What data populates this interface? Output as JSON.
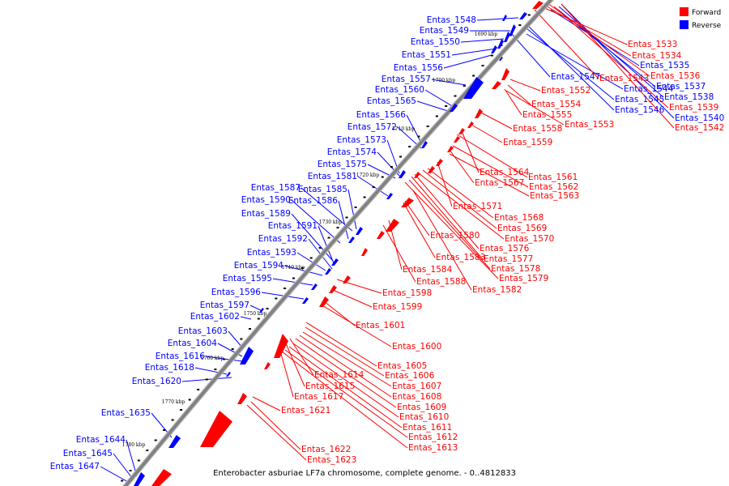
{
  "caption": "Enterobacter asburiae LF7a chromosome, complete genome. - 0..4812833",
  "legend": [
    {
      "label": "Forward",
      "color": "#ff0000"
    },
    {
      "label": "Reverse",
      "color": "#0000ff"
    }
  ],
  "colors": {
    "forward": "#ff0000",
    "reverse": "#0000ff",
    "backbone": "#808080"
  },
  "ticks": [
    "1690 kbp",
    "1700 kbp",
    "1710 kbp",
    "1720 kbp",
    "1730 kbp",
    "1740 kbp",
    "1750 kbp",
    "1760 kbp",
    "1770 kbp",
    "1780 kbp"
  ],
  "reverse_labels": [
    "Entas_1548",
    "Entas_1549",
    "Entas_1550",
    "Entas_1551",
    "Entas_1556",
    "Entas_1557",
    "Entas_1560",
    "Entas_1565",
    "Entas_1566",
    "Entas_1572",
    "Entas_1573",
    "Entas_1574",
    "Entas_1575",
    "Entas_1581",
    "Entas_1587",
    "Entas_1585",
    "Entas_1590",
    "Entas_1586",
    "Entas_1589",
    "Entas_1591",
    "Entas_1592",
    "Entas_1593",
    "Entas_1594",
    "Entas_1595",
    "Entas_1596",
    "Entas_1597",
    "Entas_1602",
    "Entas_1603",
    "Entas_1604",
    "Entas_1616",
    "Entas_1618",
    "Entas_1620",
    "Entas_1635",
    "Entas_1644",
    "Entas_1645",
    "Entas_1647",
    "Entas_1547",
    "Entas_1544",
    "Entas_1545",
    "Entas_1546",
    "Entas_1535",
    "Entas_1537",
    "Entas_1538",
    "Entas_1540"
  ],
  "forward_labels": [
    "Entas_1533",
    "Entas_1534",
    "Entas_1536",
    "Entas_1543",
    "Entas_1539",
    "Entas_1542",
    "Entas_1552",
    "Entas_1554",
    "Entas_1555",
    "Entas_1553",
    "Entas_1558",
    "Entas_1559",
    "Entas_1564",
    "Entas_1561",
    "Entas_1567",
    "Entas_1562",
    "Entas_1563",
    "Entas_1571",
    "Entas_1568",
    "Entas_1569",
    "Entas_1570",
    "Entas_1580",
    "Entas_1576",
    "Entas_1583",
    "Entas_1577",
    "Entas_1578",
    "Entas_1584",
    "Entas_1579",
    "Entas_1588",
    "Entas_1582",
    "Entas_1598",
    "Entas_1599",
    "Entas_1601",
    "Entas_1600",
    "Entas_1605",
    "Entas_1606",
    "Entas_1607",
    "Entas_1614",
    "Entas_1615",
    "Entas_1608",
    "Entas_1617",
    "Entas_1609",
    "Entas_1621",
    "Entas_1610",
    "Entas_1611",
    "Entas_1612",
    "Entas_1613",
    "Entas_1622",
    "Entas_1623"
  ]
}
